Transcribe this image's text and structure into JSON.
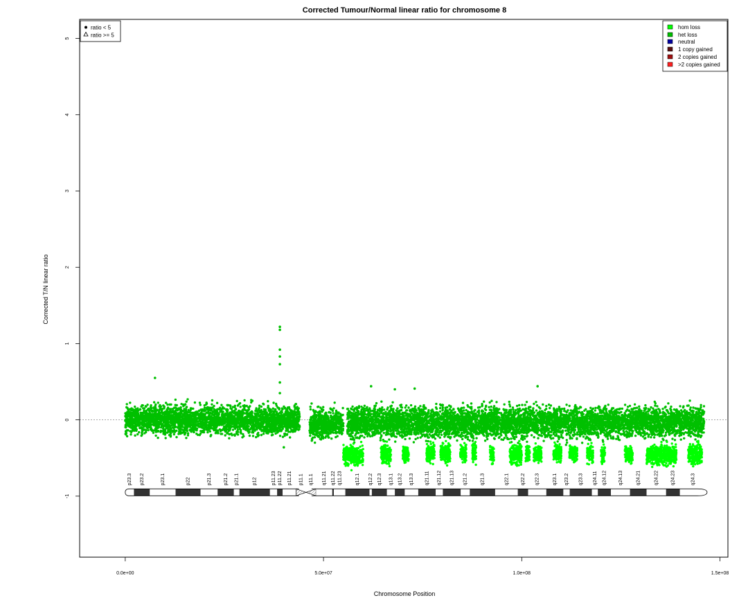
{
  "chart_data": {
    "type": "scatter",
    "title": "Corrected Tumour/Normal linear ratio for chromosome  8",
    "xlabel": "Chromosome Position",
    "ylabel": "Corrected T/N linear ratio",
    "xlim": [
      -11500000,
      152000000
    ],
    "ylim": [
      -1.8,
      5.25
    ],
    "x_ticks": [
      0,
      50000000,
      100000000,
      150000000
    ],
    "x_tick_labels": [
      "0.0e+00",
      "5.0e+07",
      "1.0e+08",
      "1.5e+08"
    ],
    "y_ticks": [
      -1,
      0,
      1,
      2,
      3,
      4,
      5
    ],
    "y_tick_labels": [
      "-1",
      "0",
      "1",
      "2",
      "3",
      "4",
      "5"
    ],
    "reference_line_y": 0,
    "shape_legend": {
      "placement": "top-left",
      "entries": [
        {
          "label": "ratio < 5",
          "shape": "circle"
        },
        {
          "label": "ratio >= 5",
          "shape": "triangle"
        }
      ]
    },
    "color_legend": {
      "placement": "top-right",
      "entries": [
        {
          "label": "hom loss",
          "color": "#00ff00"
        },
        {
          "label": "het loss",
          "color": "#00c000"
        },
        {
          "label": "neutral",
          "color": "#0000a0"
        },
        {
          "label": "1 copy gained",
          "color": "#5a1010"
        },
        {
          "label": "2 copies gained",
          "color": "#a01010"
        },
        {
          "label": ">2 copies gained",
          "color": "#ff2020"
        }
      ]
    },
    "colors": {
      "het_loss": "#00c000",
      "hom_loss": "#00ff00"
    },
    "series": [
      {
        "name": "het loss",
        "color": "#00c000",
        "segments": [
          {
            "start": 0,
            "end": 44000000,
            "median": 0.0,
            "spread": 0.12
          },
          {
            "start": 46500000,
            "end": 55000000,
            "median": -0.05,
            "spread": 0.12
          },
          {
            "start": 56000000,
            "end": 146000000,
            "median": -0.03,
            "spread": 0.13
          }
        ],
        "outliers": [
          {
            "x": 7500000,
            "y": 0.55
          },
          {
            "x": 39000000,
            "y": 1.22
          },
          {
            "x": 39000000,
            "y": 1.18
          },
          {
            "x": 39000000,
            "y": 0.92
          },
          {
            "x": 39000000,
            "y": 0.83
          },
          {
            "x": 39000000,
            "y": 0.73
          },
          {
            "x": 39000000,
            "y": 0.49
          },
          {
            "x": 39000000,
            "y": 0.35
          },
          {
            "x": 40000000,
            "y": -0.36
          },
          {
            "x": 62000000,
            "y": 0.44
          },
          {
            "x": 104000000,
            "y": 0.44
          },
          {
            "x": 68000000,
            "y": 0.4
          },
          {
            "x": 73000000,
            "y": 0.41
          }
        ]
      },
      {
        "name": "hom loss",
        "color": "#00ff00",
        "segments": [
          {
            "start": 55000000,
            "end": 60000000,
            "median": -0.47,
            "spread": 0.08
          },
          {
            "start": 64500000,
            "end": 67000000,
            "median": -0.45,
            "spread": 0.08
          },
          {
            "start": 70000000,
            "end": 71500000,
            "median": -0.45,
            "spread": 0.07
          },
          {
            "start": 76000000,
            "end": 78000000,
            "median": -0.43,
            "spread": 0.08
          },
          {
            "start": 79500000,
            "end": 82000000,
            "median": -0.43,
            "spread": 0.08
          },
          {
            "start": 84500000,
            "end": 86000000,
            "median": -0.43,
            "spread": 0.07
          },
          {
            "start": 87500000,
            "end": 88500000,
            "median": -0.43,
            "spread": 0.07
          },
          {
            "start": 92000000,
            "end": 93000000,
            "median": -0.46,
            "spread": 0.07
          },
          {
            "start": 97000000,
            "end": 100000000,
            "median": -0.45,
            "spread": 0.08
          },
          {
            "start": 101000000,
            "end": 102000000,
            "median": -0.43,
            "spread": 0.07
          },
          {
            "start": 103000000,
            "end": 105000000,
            "median": -0.45,
            "spread": 0.07
          },
          {
            "start": 108000000,
            "end": 110000000,
            "median": -0.43,
            "spread": 0.07
          },
          {
            "start": 112000000,
            "end": 114000000,
            "median": -0.43,
            "spread": 0.07
          },
          {
            "start": 116500000,
            "end": 118000000,
            "median": -0.45,
            "spread": 0.07
          },
          {
            "start": 120000000,
            "end": 121000000,
            "median": -0.45,
            "spread": 0.07
          },
          {
            "start": 126000000,
            "end": 128000000,
            "median": -0.45,
            "spread": 0.07
          },
          {
            "start": 131500000,
            "end": 139000000,
            "median": -0.46,
            "spread": 0.08
          },
          {
            "start": 142000000,
            "end": 145500000,
            "median": -0.45,
            "spread": 0.08
          }
        ]
      }
    ],
    "ideogram": {
      "y": -0.95,
      "centromere": [
        43800000,
        47000000
      ],
      "bands": [
        {
          "name": "p23.3",
          "start": 0,
          "end": 2200000,
          "stain": "gneg"
        },
        {
          "name": "p23.2",
          "start": 2200000,
          "end": 6200000,
          "stain": "gpos"
        },
        {
          "name": "p23.1",
          "start": 6200000,
          "end": 12700000,
          "stain": "gneg"
        },
        {
          "name": "p22",
          "start": 12700000,
          "end": 19000000,
          "stain": "gpos"
        },
        {
          "name": "p21.3",
          "start": 19000000,
          "end": 23300000,
          "stain": "gneg"
        },
        {
          "name": "p21.2",
          "start": 23300000,
          "end": 27400000,
          "stain": "gpos"
        },
        {
          "name": "p21.1",
          "start": 27400000,
          "end": 28800000,
          "stain": "gneg"
        },
        {
          "name": "p12",
          "start": 28800000,
          "end": 36500000,
          "stain": "gpos"
        },
        {
          "name": "p11.23",
          "start": 36500000,
          "end": 38300000,
          "stain": "gneg"
        },
        {
          "name": "p11.22",
          "start": 38300000,
          "end": 39700000,
          "stain": "gpos"
        },
        {
          "name": "p11.21",
          "start": 39700000,
          "end": 43100000,
          "stain": "gneg"
        },
        {
          "name": "p11.1",
          "start": 43100000,
          "end": 45600000,
          "stain": "acen"
        },
        {
          "name": "q11.1",
          "start": 45600000,
          "end": 48100000,
          "stain": "acen"
        },
        {
          "name": "q11.21",
          "start": 48100000,
          "end": 52200000,
          "stain": "gneg"
        },
        {
          "name": "q11.22",
          "start": 52200000,
          "end": 52600000,
          "stain": "gpos"
        },
        {
          "name": "q11.23",
          "start": 52600000,
          "end": 55500000,
          "stain": "gneg"
        },
        {
          "name": "q12.1",
          "start": 55500000,
          "end": 61600000,
          "stain": "gpos"
        },
        {
          "name": "q12.2",
          "start": 61600000,
          "end": 62200000,
          "stain": "gneg"
        },
        {
          "name": "q12.3",
          "start": 62200000,
          "end": 66000000,
          "stain": "gpos"
        },
        {
          "name": "q13.1",
          "start": 66000000,
          "end": 68000000,
          "stain": "gneg"
        },
        {
          "name": "q13.2",
          "start": 68000000,
          "end": 70500000,
          "stain": "gpos"
        },
        {
          "name": "q13.3",
          "start": 70500000,
          "end": 73900000,
          "stain": "gneg"
        },
        {
          "name": "q21.11",
          "start": 73900000,
          "end": 78300000,
          "stain": "gpos"
        },
        {
          "name": "q21.12",
          "start": 78300000,
          "end": 80100000,
          "stain": "gneg"
        },
        {
          "name": "q21.13",
          "start": 80100000,
          "end": 84600000,
          "stain": "gpos"
        },
        {
          "name": "q21.2",
          "start": 84600000,
          "end": 86900000,
          "stain": "gneg"
        },
        {
          "name": "q21.3",
          "start": 86900000,
          "end": 93300000,
          "stain": "gpos"
        },
        {
          "name": "q22.1",
          "start": 93300000,
          "end": 99000000,
          "stain": "gneg"
        },
        {
          "name": "q22.2",
          "start": 99000000,
          "end": 101600000,
          "stain": "gpos"
        },
        {
          "name": "q22.3",
          "start": 101600000,
          "end": 106200000,
          "stain": "gneg"
        },
        {
          "name": "q23.1",
          "start": 106200000,
          "end": 110500000,
          "stain": "gpos"
        },
        {
          "name": "q23.2",
          "start": 110500000,
          "end": 112100000,
          "stain": "gneg"
        },
        {
          "name": "q23.3",
          "start": 112100000,
          "end": 117700000,
          "stain": "gpos"
        },
        {
          "name": "q24.11",
          "start": 117700000,
          "end": 119200000,
          "stain": "gneg"
        },
        {
          "name": "q24.12",
          "start": 119200000,
          "end": 122500000,
          "stain": "gpos"
        },
        {
          "name": "q24.13",
          "start": 122500000,
          "end": 127300000,
          "stain": "gneg"
        },
        {
          "name": "q24.21",
          "start": 127300000,
          "end": 131500000,
          "stain": "gpos"
        },
        {
          "name": "q24.22",
          "start": 131500000,
          "end": 136400000,
          "stain": "gneg"
        },
        {
          "name": "q24.23",
          "start": 136400000,
          "end": 139900000,
          "stain": "gpos"
        },
        {
          "name": "q24.3",
          "start": 139900000,
          "end": 146400000,
          "stain": "gneg"
        }
      ]
    }
  }
}
